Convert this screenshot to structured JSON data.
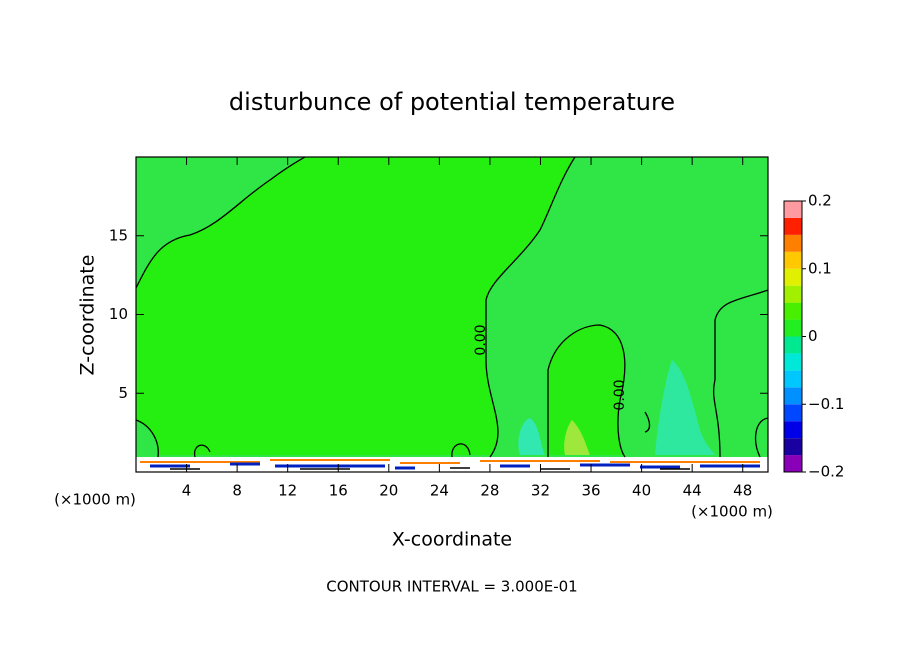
{
  "chart_data": {
    "type": "contour",
    "title": "disturbunce of potential temperature",
    "x_label": "X-coordinate",
    "y_label": "Z-coordinate",
    "x_unit": "(×1000 m)",
    "xlim": [
      0,
      50
    ],
    "xticks": [
      4,
      8,
      12,
      16,
      20,
      24,
      28,
      32,
      36,
      40,
      44,
      48
    ],
    "ylim": [
      0,
      20
    ],
    "yticks": [
      5,
      10,
      15
    ],
    "contour_labels": [
      "0.00",
      "0.00"
    ],
    "footer": "CONTOUR INTERVAL = 3.000E-01",
    "colorbar": {
      "lim": [
        -0.2,
        0.2
      ],
      "levels": [
        -0.2,
        -0.175,
        -0.15,
        -0.125,
        -0.1,
        -0.075,
        -0.05,
        -0.025,
        0,
        0.025,
        0.05,
        0.075,
        0.1,
        0.125,
        0.15,
        0.175,
        0.2
      ],
      "colors": [
        "#8a00b8",
        "#1a00a0",
        "#0000e8",
        "#0048ff",
        "#0090ff",
        "#00c8ff",
        "#00e8d8",
        "#00e890",
        "#22ee22",
        "#48f000",
        "#a0f000",
        "#e0f000",
        "#ffc800",
        "#ff8000",
        "#ff2000",
        "#ff9aa0"
      ],
      "ticks": [
        {
          "value": -0.2,
          "label": "−0.2"
        },
        {
          "value": -0.1,
          "label": "−0.1"
        },
        0,
        0.1,
        0.2
      ]
    }
  }
}
